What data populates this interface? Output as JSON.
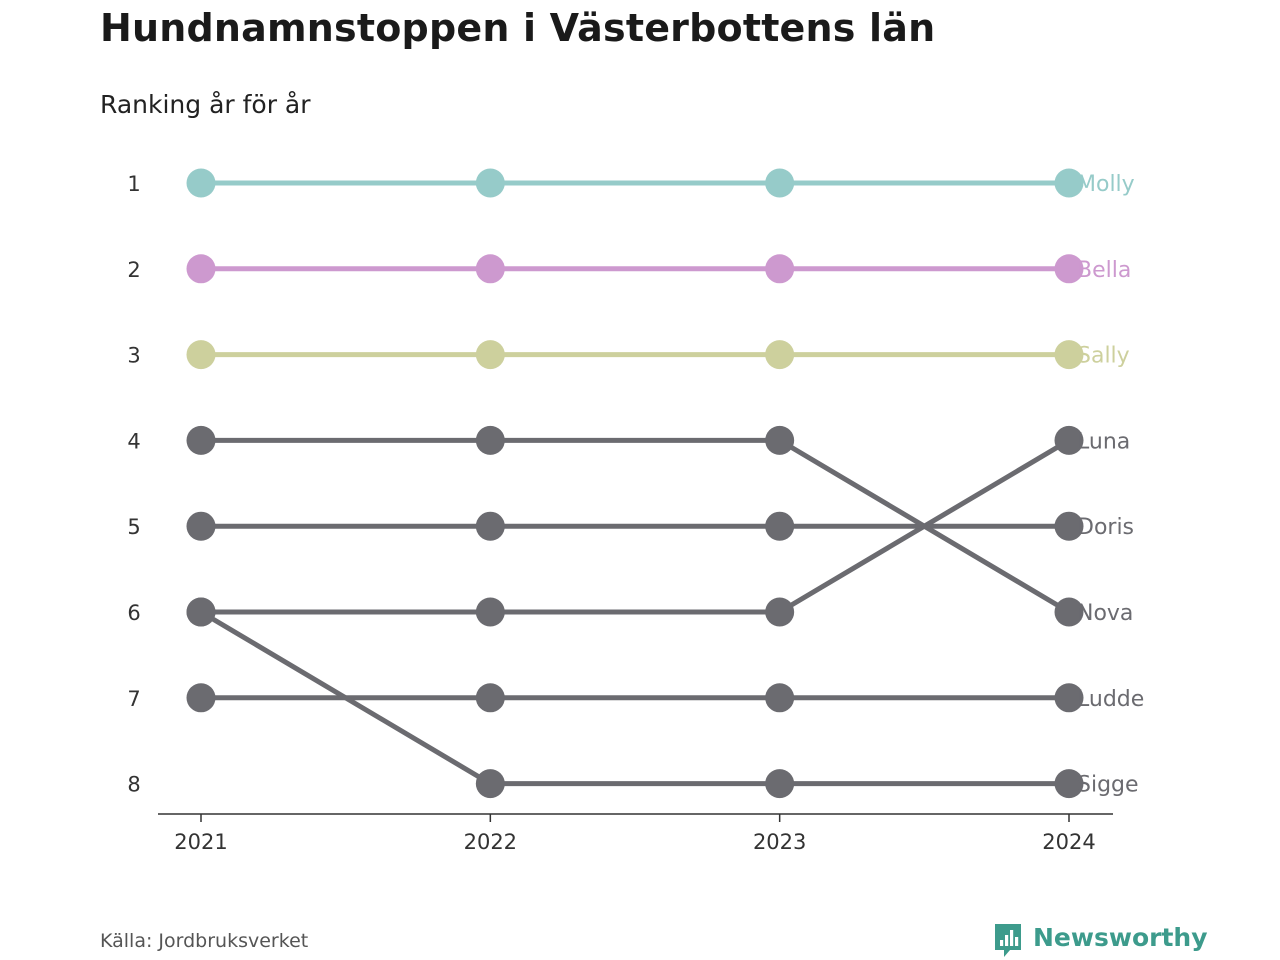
{
  "title": "Hundnamnstoppen i Västerbottens län",
  "subtitle": "Ranking år för år",
  "source": "Källa: Jordbruksverket",
  "brand": {
    "name": "Newsworthy",
    "icon": "bar-chart-speech-bubble-icon",
    "color": "#3d9b8c"
  },
  "chart_data": {
    "type": "line",
    "x": [
      "2021",
      "2022",
      "2023",
      "2024"
    ],
    "y_ticks": [
      1,
      2,
      3,
      4,
      5,
      6,
      7,
      8
    ],
    "ylim": [
      1,
      8
    ],
    "y_inverted": true,
    "grid": false,
    "series": [
      {
        "name": "Molly",
        "values": [
          1,
          1,
          1,
          1
        ],
        "color": "#96cbc9"
      },
      {
        "name": "Bella",
        "values": [
          2,
          2,
          2,
          2
        ],
        "color": "#cd99cf"
      },
      {
        "name": "Sally",
        "values": [
          3,
          3,
          3,
          3
        ],
        "color": "#cdd09d"
      },
      {
        "name": "Luna",
        "values": [
          6,
          6,
          6,
          4
        ],
        "color": "#6b6b70"
      },
      {
        "name": "Doris",
        "values": [
          5,
          5,
          5,
          5
        ],
        "color": "#6b6b70"
      },
      {
        "name": "Nova",
        "values": [
          4,
          4,
          4,
          6
        ],
        "color": "#6b6b70"
      },
      {
        "name": "Ludde",
        "values": [
          7,
          7,
          7,
          7
        ],
        "color": "#6b6b70"
      },
      {
        "name": "Sigge",
        "values": [
          6,
          8,
          8,
          8
        ],
        "color": "#6b6b70"
      }
    ]
  }
}
